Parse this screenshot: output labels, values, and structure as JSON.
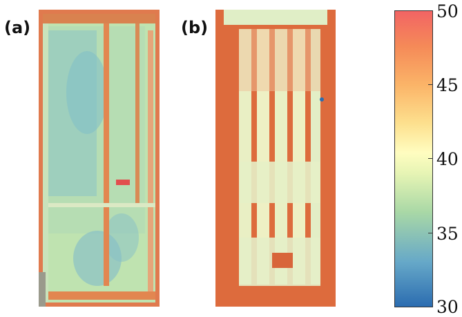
{
  "panels": [
    {
      "label": "(a)"
    },
    {
      "label": "(b)"
    }
  ],
  "colorbar": {
    "ticks": [
      "50",
      "45",
      "40",
      "35",
      "30"
    ],
    "min": 30,
    "max": 50,
    "colors": {
      "low": "#2b6cb0",
      "mid": "#fffdc0",
      "high": "#f26464"
    }
  }
}
